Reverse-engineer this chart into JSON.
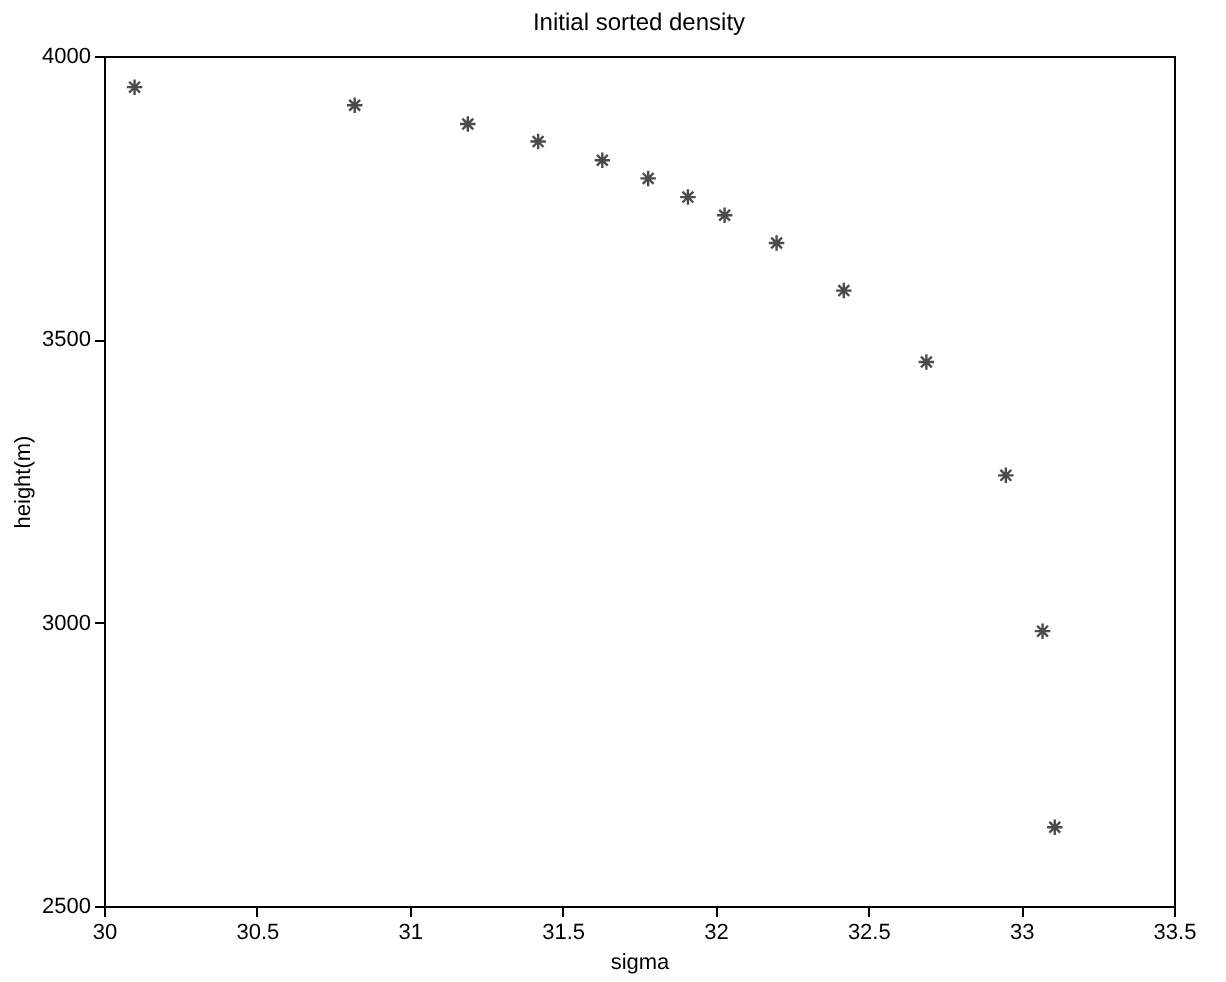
{
  "chart_data": {
    "type": "scatter",
    "title": "Initial sorted density",
    "xlabel": "sigma",
    "ylabel": "height(m)",
    "x": [
      30.1,
      30.82,
      31.19,
      31.42,
      31.63,
      31.78,
      31.91,
      32.03,
      32.2,
      32.42,
      32.69,
      32.95,
      33.07,
      33.11
    ],
    "series": [
      {
        "color": "#000000",
        "values": [
          3945,
          3913,
          3880,
          3849,
          3816,
          3784,
          3751,
          3719,
          3670,
          3586,
          3460,
          3260,
          2985,
          2639
        ]
      }
    ],
    "xlim": [
      30,
      33.5
    ],
    "xticks": [
      30,
      30.5,
      31,
      31.5,
      32,
      32.5,
      33,
      33.5
    ],
    "ylim": [
      2500,
      4000
    ],
    "yticks": [
      2500,
      3000,
      3500,
      4000
    ],
    "grid": false,
    "marker": "cross"
  }
}
